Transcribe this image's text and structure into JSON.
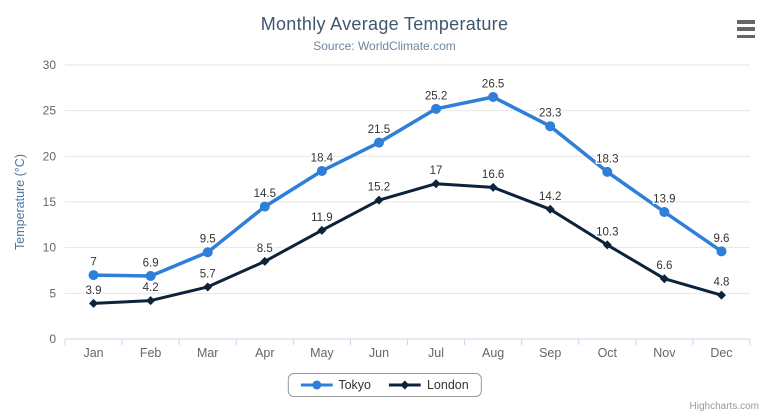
{
  "menu": {
    "icon": "hamburger-menu-icon"
  },
  "credits": {
    "label": "Highcharts.com"
  },
  "chart_data": {
    "type": "line",
    "title": "Monthly Average Temperature",
    "subtitle": "Source: WorldClimate.com",
    "categories": [
      "Jan",
      "Feb",
      "Mar",
      "Apr",
      "May",
      "Jun",
      "Jul",
      "Aug",
      "Sep",
      "Oct",
      "Nov",
      "Dec"
    ],
    "series": [
      {
        "name": "Tokyo",
        "color": "#2f7ed8",
        "marker": "circle",
        "values": [
          7,
          6.9,
          9.5,
          14.5,
          18.4,
          21.5,
          25.2,
          26.5,
          23.3,
          18.3,
          13.9,
          9.6
        ]
      },
      {
        "name": "London",
        "color": "#0d233a",
        "marker": "diamond",
        "values": [
          3.9,
          4.2,
          5.7,
          8.5,
          11.9,
          15.2,
          17,
          16.6,
          14.2,
          10.3,
          6.6,
          4.8
        ]
      }
    ],
    "xlabel": "",
    "ylabel": "Temperature (°C)",
    "ylim": [
      0,
      30
    ],
    "ytick_interval": 5,
    "grid": "horizontal",
    "legend_position": "bottom",
    "data_labels": true,
    "styles": {
      "grid_color": "#e6e6e6",
      "axis_line_color": "#ccd6eb",
      "axis_label_color": "#666666",
      "axis_title_color": "#4d759e",
      "data_label_color": "#333333"
    }
  }
}
